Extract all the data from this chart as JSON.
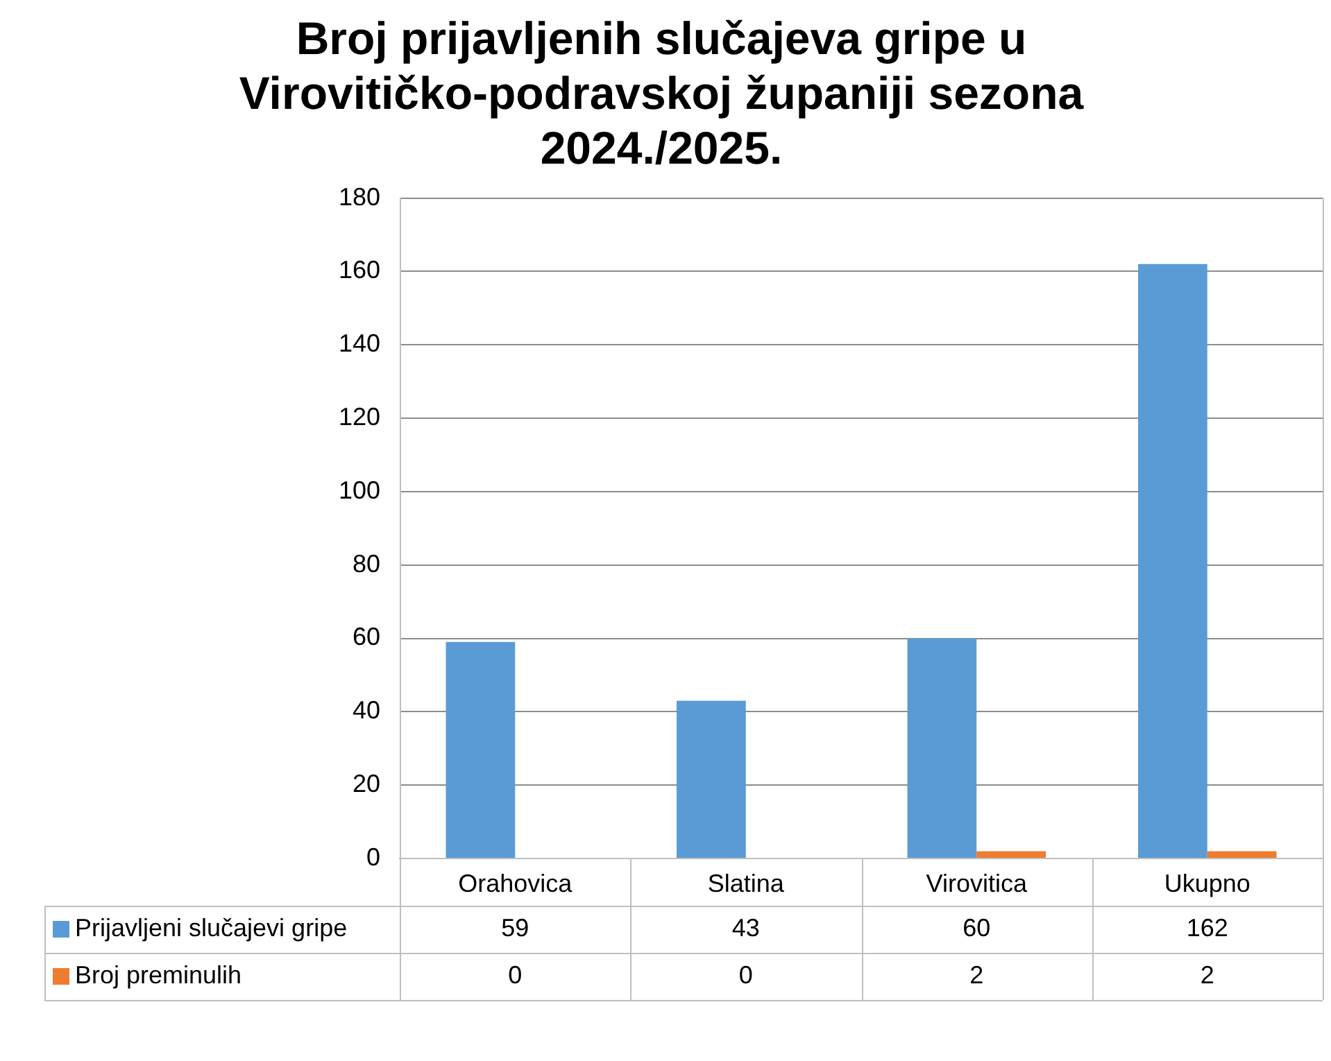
{
  "chart_data": {
    "type": "bar",
    "title": "Broj prijavljenih slučajeva gripe u Virovitičko-podravskoj županiji sezona 2024./2025.",
    "categories": [
      "Orahovica",
      "Slatina",
      "Virovitica",
      "Ukupno"
    ],
    "series": [
      {
        "name": "Prijavljeni slučajevi gripe",
        "color": "#5b9bd5",
        "values": [
          59,
          43,
          60,
          162
        ]
      },
      {
        "name": "Broj preminulih",
        "color": "#ed7d31",
        "values": [
          0,
          0,
          2,
          2
        ]
      }
    ],
    "ylim": [
      0,
      180
    ],
    "yticks": [
      0,
      20,
      40,
      60,
      80,
      100,
      120,
      140,
      160,
      180
    ],
    "grid": "y",
    "legend": "bottom",
    "data_labels": true
  }
}
